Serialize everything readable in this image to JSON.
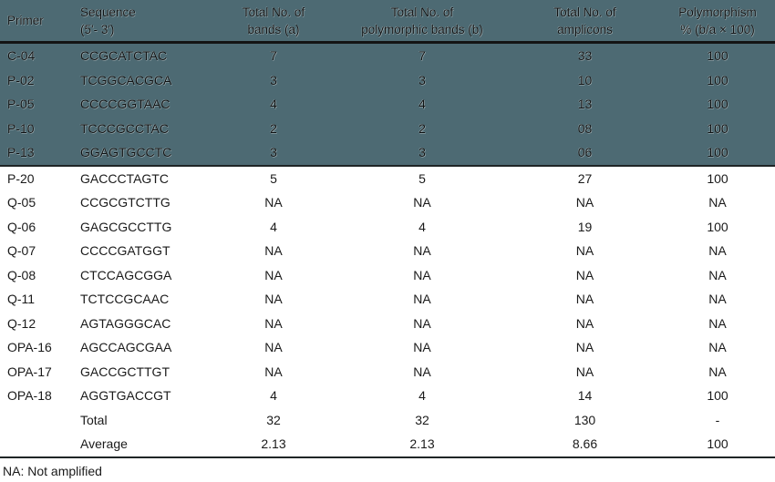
{
  "colors": {
    "highlight_bg": "#4d6a73"
  },
  "table": {
    "columns": [
      {
        "key": "primer",
        "label": "Primer",
        "sub": ""
      },
      {
        "key": "sequence",
        "label": "Sequence",
        "sub": "(5'- 3')"
      },
      {
        "key": "bands_a",
        "label": "Total No. of",
        "sub": "bands (a)"
      },
      {
        "key": "poly_b",
        "label": "Total No. of",
        "sub": "polymorphic bands (b)"
      },
      {
        "key": "amplicons",
        "label": "Total No. of",
        "sub": "amplicons"
      },
      {
        "key": "polymorphism",
        "label": "Polymorphism",
        "sub": "% (b/a × 100)"
      }
    ],
    "rows": [
      {
        "primer": "C-04",
        "sequence": "CCGCATCTAC",
        "bands_a": "7",
        "poly_b": "7",
        "amplicons": "33",
        "polymorphism": "100",
        "highlight": true
      },
      {
        "primer": "P-02",
        "sequence": "TCGGCACGCA",
        "bands_a": "3",
        "poly_b": "3",
        "amplicons": "10",
        "polymorphism": "100",
        "highlight": true
      },
      {
        "primer": "P-05",
        "sequence": "CCCCGGTAAC",
        "bands_a": "4",
        "poly_b": "4",
        "amplicons": "13",
        "polymorphism": "100",
        "highlight": true
      },
      {
        "primer": "P-10",
        "sequence": "TCCCGCCTAC",
        "bands_a": "2",
        "poly_b": "2",
        "amplicons": "08",
        "polymorphism": "100",
        "highlight": true
      },
      {
        "primer": "P-13",
        "sequence": "GGAGTGCCTC",
        "bands_a": "3",
        "poly_b": "3",
        "amplicons": "06",
        "polymorphism": "100",
        "highlight": true
      },
      {
        "primer": "P-20",
        "sequence": "GACCCTAGTC",
        "bands_a": "5",
        "poly_b": "5",
        "amplicons": "27",
        "polymorphism": "100",
        "highlight": false
      },
      {
        "primer": "Q-05",
        "sequence": "CCGCGTCTTG",
        "bands_a": "NA",
        "poly_b": "NA",
        "amplicons": "NA",
        "polymorphism": "NA",
        "highlight": false
      },
      {
        "primer": "Q-06",
        "sequence": "GAGCGCCTTG",
        "bands_a": "4",
        "poly_b": "4",
        "amplicons": "19",
        "polymorphism": "100",
        "highlight": false
      },
      {
        "primer": "Q-07",
        "sequence": "CCCCGATGGT",
        "bands_a": "NA",
        "poly_b": "NA",
        "amplicons": "NA",
        "polymorphism": "NA",
        "highlight": false
      },
      {
        "primer": "Q-08",
        "sequence": "CTCCAGCGGA",
        "bands_a": "NA",
        "poly_b": "NA",
        "amplicons": "NA",
        "polymorphism": "NA",
        "highlight": false
      },
      {
        "primer": "Q-11",
        "sequence": "TCTCCGCAAC",
        "bands_a": "NA",
        "poly_b": "NA",
        "amplicons": "NA",
        "polymorphism": "NA",
        "highlight": false
      },
      {
        "primer": "Q-12",
        "sequence": "AGTAGGGCAC",
        "bands_a": "NA",
        "poly_b": "NA",
        "amplicons": "NA",
        "polymorphism": "NA",
        "highlight": false
      },
      {
        "primer": "OPA-16",
        "sequence": "AGCCAGCGAA",
        "bands_a": "NA",
        "poly_b": "NA",
        "amplicons": "NA",
        "polymorphism": "NA",
        "highlight": false
      },
      {
        "primer": "OPA-17",
        "sequence": "GACCGCTTGT",
        "bands_a": "NA",
        "poly_b": "NA",
        "amplicons": "NA",
        "polymorphism": "NA",
        "highlight": false
      },
      {
        "primer": "OPA-18",
        "sequence": "AGGTGACCGT",
        "bands_a": "4",
        "poly_b": "4",
        "amplicons": "14",
        "polymorphism": "100",
        "highlight": false
      },
      {
        "primer": "",
        "sequence": "Total",
        "bands_a": "32",
        "poly_b": "32",
        "amplicons": "130",
        "polymorphism": "-",
        "highlight": false
      },
      {
        "primer": "",
        "sequence": "Average",
        "bands_a": "2.13",
        "poly_b": "2.13",
        "amplicons": "8.66",
        "polymorphism": "100",
        "highlight": false
      }
    ],
    "footnote": "NA: Not amplified"
  }
}
